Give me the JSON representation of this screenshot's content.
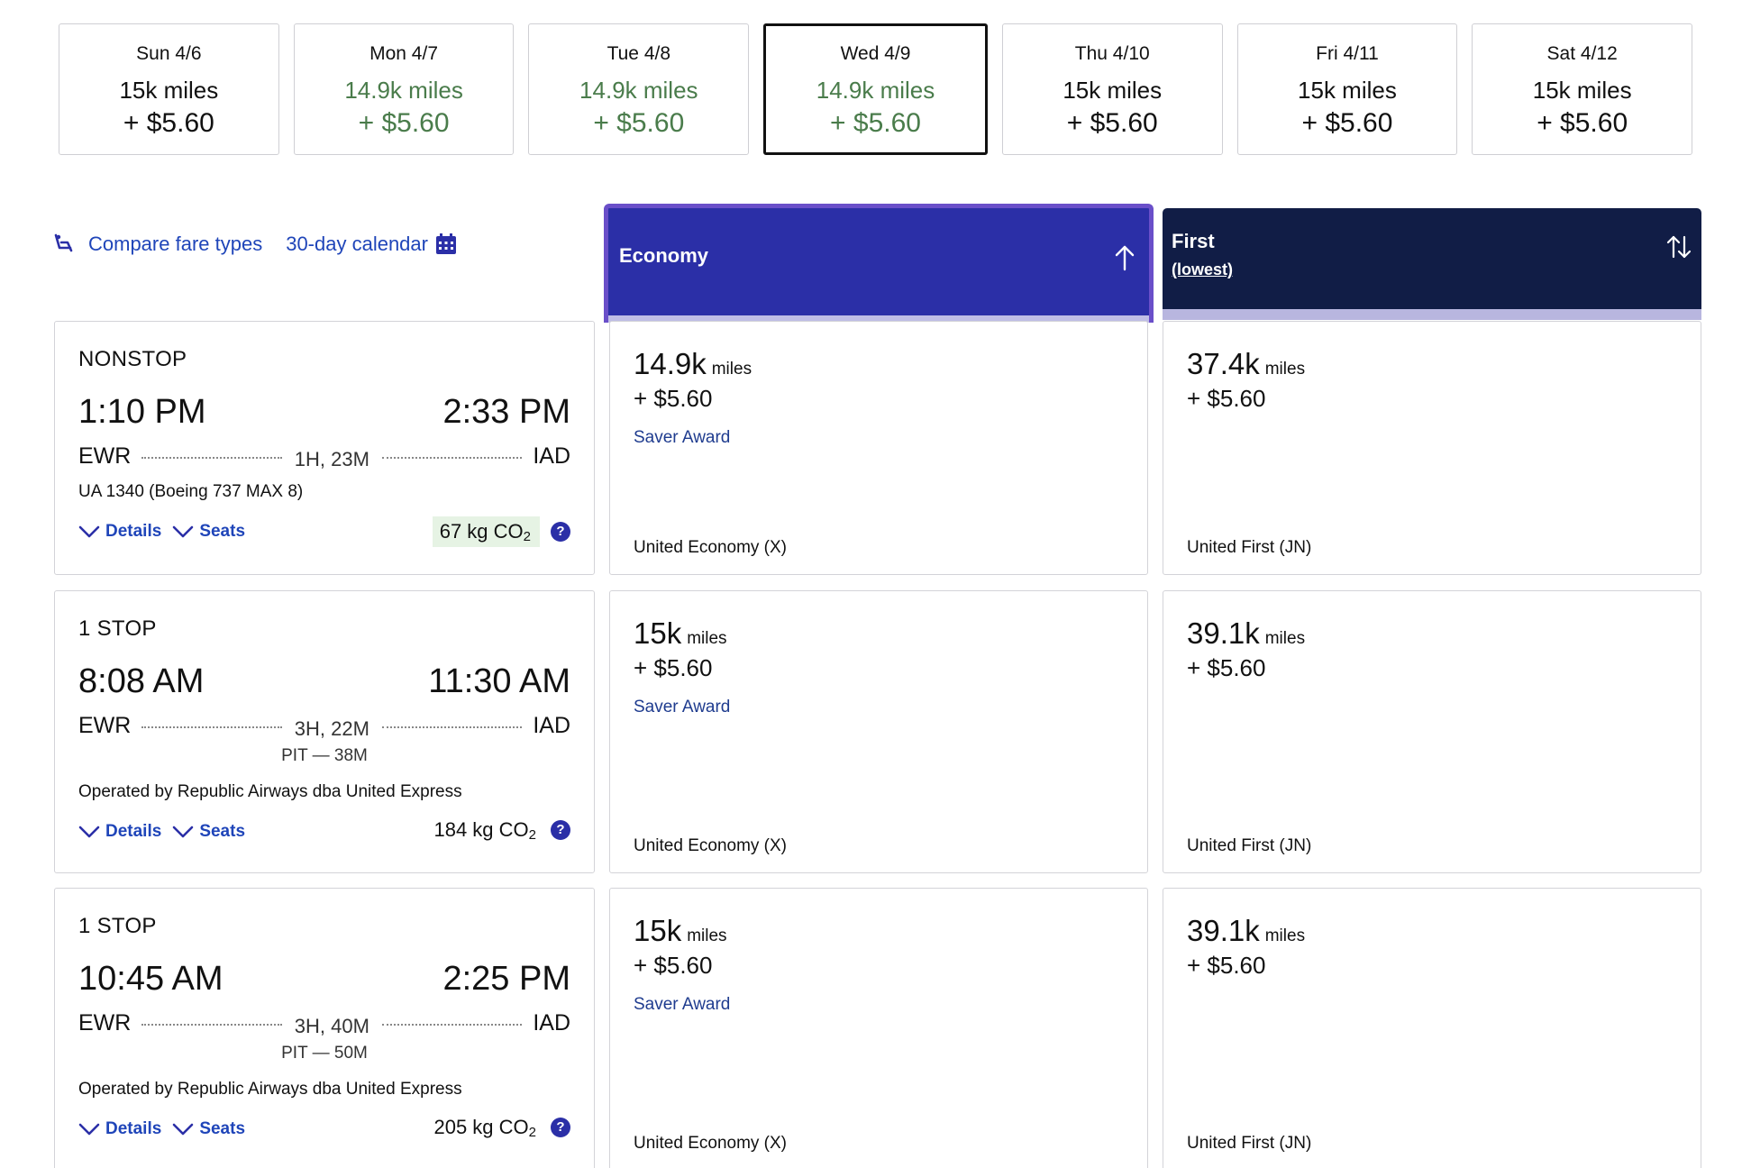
{
  "dates": [
    {
      "date": "Sun 4/6",
      "miles": "15k miles",
      "fee": "+ $5.60",
      "low": false,
      "selected": false
    },
    {
      "date": "Mon 4/7",
      "miles": "14.9k miles",
      "fee": "+ $5.60",
      "low": true,
      "selected": false
    },
    {
      "date": "Tue 4/8",
      "miles": "14.9k miles",
      "fee": "+ $5.60",
      "low": true,
      "selected": false
    },
    {
      "date": "Wed 4/9",
      "miles": "14.9k miles",
      "fee": "+ $5.60",
      "low": true,
      "selected": true
    },
    {
      "date": "Thu 4/10",
      "miles": "15k miles",
      "fee": "+ $5.60",
      "low": false,
      "selected": false
    },
    {
      "date": "Fri 4/11",
      "miles": "15k miles",
      "fee": "+ $5.60",
      "low": false,
      "selected": false
    },
    {
      "date": "Sat 4/12",
      "miles": "15k miles",
      "fee": "+ $5.60",
      "low": false,
      "selected": false
    }
  ],
  "toolbar": {
    "compare_label": "Compare fare types",
    "compare_icon": "seat-icon",
    "calendar_label": "30-day calendar",
    "calendar_icon": "calendar-icon"
  },
  "columns": {
    "economy": {
      "title": "Economy",
      "sort_icon": "arrow-up-icon"
    },
    "first": {
      "title": "First",
      "subtitle": "(lowest)",
      "sort_icon": "sort-arrows-icon"
    }
  },
  "colors": {
    "accent_blue": "#2b2fa7",
    "link_blue": "#1f45b9",
    "navy": "#111d46",
    "low_price_green": "#4a7c4b",
    "economy_border": "#6a4fc9"
  },
  "flights": [
    {
      "stops": "NONSTOP",
      "depart": "1:10 PM",
      "arrive": "2:33 PM",
      "origin": "EWR",
      "destination": "IAD",
      "duration": "1H, 23M",
      "layover": "",
      "info": "UA 1340 (Boeing 737 MAX 8)",
      "details_label": "Details",
      "seats_label": "Seats",
      "co2": "67 kg CO",
      "co2_sub": "2",
      "co2_highlight": true,
      "help": "?",
      "economy": {
        "miles": "14.9k",
        "unit": "miles",
        "fee": "+ $5.60",
        "tag": "Saver Award",
        "class": "United Economy (X)"
      },
      "first": {
        "miles": "37.4k",
        "unit": "miles",
        "fee": "+ $5.60",
        "tag": "",
        "class": "United First (JN)"
      }
    },
    {
      "stops": "1 STOP",
      "depart": "8:08 AM",
      "arrive": "11:30 AM",
      "origin": "EWR",
      "destination": "IAD",
      "duration": "3H, 22M",
      "layover": "PIT — 38M",
      "info": "Operated by Republic Airways dba United Express",
      "details_label": "Details",
      "seats_label": "Seats",
      "co2": "184 kg CO",
      "co2_sub": "2",
      "co2_highlight": false,
      "help": "?",
      "economy": {
        "miles": "15k",
        "unit": "miles",
        "fee": "+ $5.60",
        "tag": "Saver Award",
        "class": "United Economy (X)"
      },
      "first": {
        "miles": "39.1k",
        "unit": "miles",
        "fee": "+ $5.60",
        "tag": "",
        "class": "United First (JN)"
      }
    },
    {
      "stops": "1 STOP",
      "depart": "10:45 AM",
      "arrive": "2:25 PM",
      "origin": "EWR",
      "destination": "IAD",
      "duration": "3H, 40M",
      "layover": "PIT — 50M",
      "info": "Operated by Republic Airways dba United Express",
      "details_label": "Details",
      "seats_label": "Seats",
      "co2": "205 kg CO",
      "co2_sub": "2",
      "co2_highlight": false,
      "help": "?",
      "economy": {
        "miles": "15k",
        "unit": "miles",
        "fee": "+ $5.60",
        "tag": "Saver Award",
        "class": "United Economy (X)"
      },
      "first": {
        "miles": "39.1k",
        "unit": "miles",
        "fee": "+ $5.60",
        "tag": "",
        "class": "United First (JN)"
      }
    }
  ]
}
